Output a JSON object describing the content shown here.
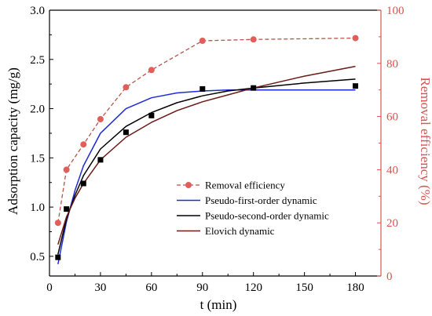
{
  "chart_data": {
    "type": "line",
    "xlabel": "t (min)",
    "ylabel": "Adsorption capacity (mg/g)",
    "y2label": "Removal efficiency (%)",
    "xlim": [
      0,
      195
    ],
    "ylim": [
      0.3,
      3.0
    ],
    "y2lim": [
      0,
      100
    ],
    "xticks": [
      "0",
      "30",
      "60",
      "90",
      "120",
      "150",
      "180"
    ],
    "yticks": [
      "0.5",
      "1.0",
      "1.5",
      "2.0",
      "2.5",
      "3.0"
    ],
    "y2ticks": [
      "0",
      "20",
      "40",
      "60",
      "80",
      "100"
    ],
    "y2_color": "#d9534f",
    "legend_position": "center-left",
    "grid": false,
    "measured_capacity": {
      "axis": "left",
      "marker": "square",
      "color": "#000000",
      "x": [
        5,
        10,
        20,
        30,
        45,
        60,
        90,
        120,
        180
      ],
      "y": [
        0.49,
        0.98,
        1.24,
        1.48,
        1.76,
        1.93,
        2.2,
        2.21,
        2.23
      ]
    },
    "series": [
      {
        "name": "Removal efficiency",
        "axis": "right",
        "style": "dashed-markers",
        "color": "#b5544a",
        "marker_color": "#e05f5a",
        "x": [
          5,
          10,
          20,
          30,
          45,
          60,
          90,
          120,
          180
        ],
        "y": [
          20,
          40,
          49.5,
          59,
          71,
          77.5,
          88.5,
          89,
          89.5
        ]
      },
      {
        "name": "Pseudo-first-order dynamic",
        "axis": "left",
        "style": "line",
        "color": "#1f2bd6",
        "x": [
          5,
          10,
          15,
          20,
          30,
          45,
          60,
          75,
          90,
          105,
          120,
          150,
          180
        ],
        "y": [
          0.42,
          0.85,
          1.17,
          1.42,
          1.75,
          2.0,
          2.11,
          2.16,
          2.18,
          2.19,
          2.19,
          2.19,
          2.19
        ]
      },
      {
        "name": "Pseudo-second-order dynamic",
        "axis": "left",
        "style": "line",
        "color": "#000000",
        "x": [
          5,
          10,
          15,
          20,
          30,
          45,
          60,
          75,
          90,
          105,
          120,
          150,
          180
        ],
        "y": [
          0.52,
          0.88,
          1.12,
          1.32,
          1.59,
          1.82,
          1.96,
          2.06,
          2.13,
          2.18,
          2.21,
          2.26,
          2.3
        ]
      },
      {
        "name": "Elovich dynamic",
        "axis": "left",
        "style": "line",
        "color": "#6b1a16",
        "x": [
          5,
          10,
          15,
          20,
          30,
          45,
          60,
          75,
          90,
          105,
          120,
          150,
          180
        ],
        "y": [
          0.62,
          0.9,
          1.09,
          1.24,
          1.48,
          1.71,
          1.86,
          1.98,
          2.07,
          2.14,
          2.21,
          2.33,
          2.43
        ]
      }
    ]
  }
}
